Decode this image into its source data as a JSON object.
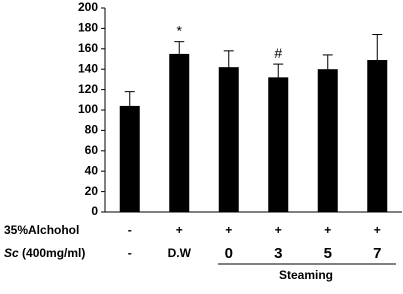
{
  "chart_data": {
    "type": "bar",
    "values": [
      104,
      155,
      142,
      132,
      140,
      149
    ],
    "errors": [
      14,
      12,
      16,
      13,
      14,
      25
    ],
    "annotations": [
      null,
      "*",
      null,
      "#",
      null,
      null
    ],
    "color": "#000000",
    "ylim": [
      0,
      200
    ],
    "yticks": [
      0,
      20,
      40,
      60,
      80,
      100,
      120,
      140,
      160,
      180,
      200
    ],
    "rows": [
      {
        "label": "35%Alchohol",
        "values": [
          "-",
          "+",
          "+",
          "+",
          "+",
          "+"
        ]
      },
      {
        "label_italic": "Sc",
        "label": "(400mg/ml)",
        "values": [
          "-",
          "D.W",
          "0",
          "3",
          "5",
          "7"
        ]
      }
    ],
    "group_label": "Steaming"
  }
}
